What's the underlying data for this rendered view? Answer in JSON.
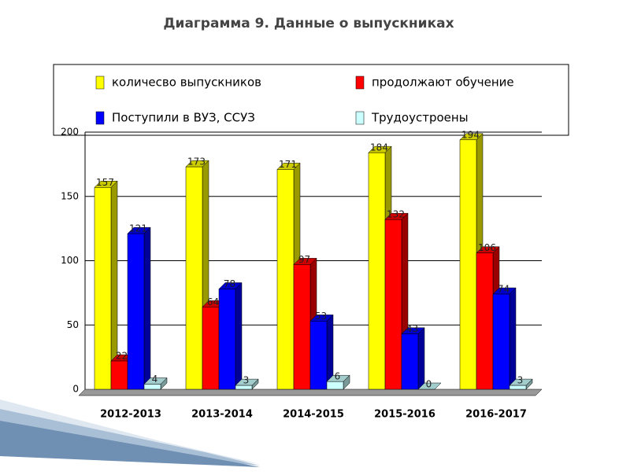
{
  "chart_data": {
    "type": "bar3d",
    "title": "Диаграмма 9. Данные о выпускниках",
    "categories": [
      "2012-2013",
      "2013-2014",
      "2014-2015",
      "2015-2016",
      "2016-2017"
    ],
    "series": [
      {
        "name": "количесво выпускников",
        "color": "#ffff00",
        "values": [
          157,
          173,
          171,
          184,
          194
        ]
      },
      {
        "name": "продолжают обучение",
        "color": "#ff0000",
        "values": [
          22,
          64,
          97,
          132,
          106
        ]
      },
      {
        "name": "Поступили в ВУЗ, ССУЗ",
        "color": "#0000ff",
        "values": [
          121,
          78,
          53,
          43,
          74
        ]
      },
      {
        "name": "Трудоустроены",
        "color": "#ccffff",
        "values": [
          4,
          3,
          6,
          0,
          3
        ]
      }
    ],
    "ylim": [
      0,
      200
    ],
    "yticks": [
      0,
      50,
      100,
      150,
      200
    ],
    "grid": true
  }
}
